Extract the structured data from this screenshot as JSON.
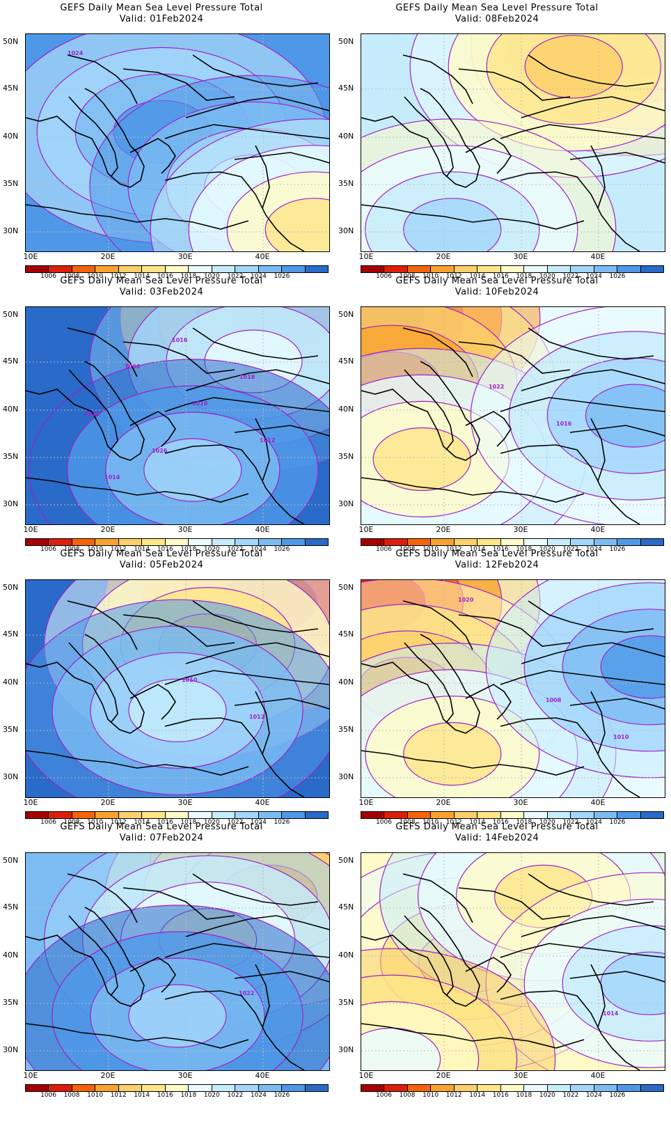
{
  "palette": [
    "#a50000",
    "#dc1e0a",
    "#f5640a",
    "#f9a230",
    "#fbcf69",
    "#fde68a",
    "#fffbc8",
    "#e9fbff",
    "#c6ecfb",
    "#a3d6fb",
    "#7cbcf2",
    "#4f98e8",
    "#2a6ac8"
  ],
  "colorbar_labels": [
    "1006",
    "1008",
    "1010",
    "1012",
    "1014",
    "1016",
    "1018",
    "1020",
    "1022",
    "1024",
    "1026"
  ],
  "lon_labels": [
    "10E",
    "20E",
    "30E",
    "40E"
  ],
  "lat_labels": [
    "50N",
    "45N",
    "40N",
    "35N",
    "30N"
  ],
  "panels": [
    {
      "title": "GEFS Daily Mean Sea Level Pressure Total",
      "valid": "Valid: 01Feb2024",
      "base": 11,
      "gradient": [
        [
          0.45,
          0.45,
          11
        ],
        [
          0.75,
          0.7,
          8
        ],
        [
          0.95,
          0.9,
          5
        ]
      ],
      "contour_labels": [
        "1024"
      ]
    },
    {
      "title": "GEFS Daily Mean Sea Level Pressure Total",
      "valid": "Valid: 08Feb2024",
      "base": 8,
      "gradient": [
        [
          0.9,
          0.05,
          1
        ],
        [
          0.7,
          0.15,
          4
        ],
        [
          0.3,
          0.9,
          9
        ]
      ],
      "contour_labels": []
    },
    {
      "title": "GEFS Daily Mean Sea Level Pressure Total",
      "valid": "Valid: 03Feb2024",
      "base": 12,
      "gradient": [
        [
          0.85,
          0.05,
          1
        ],
        [
          0.75,
          0.25,
          7
        ],
        [
          0.55,
          0.75,
          9
        ]
      ],
      "contour_labels": [
        "1006",
        "1010",
        "1012",
        "1014",
        "1016",
        "1018",
        "1022",
        "1026"
      ]
    },
    {
      "title": "GEFS Daily Mean Sea Level Pressure Total",
      "valid": "Valid: 10Feb2024",
      "base": 7,
      "gradient": [
        [
          0.05,
          0.05,
          0
        ],
        [
          0.1,
          0.35,
          2
        ],
        [
          0.2,
          0.7,
          5
        ],
        [
          0.9,
          0.5,
          10
        ]
      ],
      "contour_labels": [
        "1022",
        "1016"
      ]
    },
    {
      "title": "GEFS Daily Mean Sea Level Pressure Total",
      "valid": "Valid: 05Feb2024",
      "base": 12,
      "gradient": [
        [
          0.8,
          0.1,
          0
        ],
        [
          0.6,
          0.3,
          4
        ],
        [
          0.5,
          0.6,
          8
        ]
      ],
      "contour_labels": [
        "1010",
        "1012"
      ]
    },
    {
      "title": "GEFS Daily Mean Sea Level Pressure Total",
      "valid": "Valid: 12Feb2024",
      "base": 7,
      "gradient": [
        [
          0.05,
          0.1,
          1
        ],
        [
          0.15,
          0.5,
          3
        ],
        [
          0.3,
          0.8,
          5
        ],
        [
          0.95,
          0.4,
          11
        ]
      ],
      "contour_labels": [
        "1008",
        "1010",
        "1020"
      ]
    },
    {
      "title": "GEFS Daily Mean Sea Level Pressure Total",
      "valid": "Valid: 07Feb2024",
      "base": 10,
      "gradient": [
        [
          0.95,
          0.05,
          0
        ],
        [
          0.8,
          0.2,
          3
        ],
        [
          0.6,
          0.4,
          6
        ],
        [
          0.5,
          0.75,
          9
        ]
      ],
      "contour_labels": [
        "1022"
      ]
    },
    {
      "title": "GEFS Daily Mean Sea Level Pressure Total",
      "valid": "Valid: 14Feb2024",
      "base": 6,
      "gradient": [
        [
          0.35,
          0.5,
          4
        ],
        [
          0.6,
          0.2,
          5
        ],
        [
          0.95,
          0.6,
          9
        ],
        [
          0.1,
          0.95,
          7
        ]
      ],
      "contour_labels": [
        "1014"
      ]
    }
  ]
}
